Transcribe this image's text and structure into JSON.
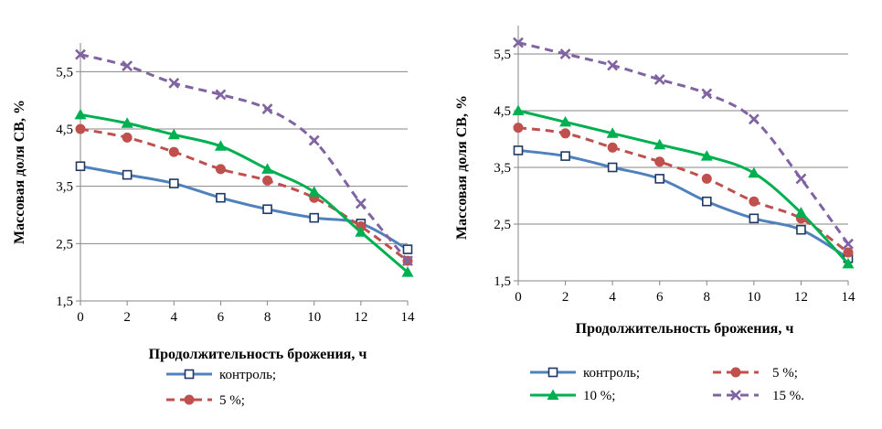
{
  "chart_data": [
    {
      "type": "line",
      "xlabel": "Продолжительность брожения, ч",
      "ylabel": "Массовая доля СВ, %",
      "x": [
        0,
        2,
        4,
        6,
        8,
        10,
        12,
        14
      ],
      "x_tick_labels": [
        "0",
        "2",
        "4",
        "6",
        "8",
        "10",
        "12",
        "14"
      ],
      "ylim": [
        1.5,
        6.0
      ],
      "y_ticks": [
        1.5,
        2.5,
        3.5,
        4.5,
        5.5
      ],
      "y_tick_labels": [
        "1,5",
        "2,5",
        "3,5",
        "4,5",
        "5,5"
      ],
      "grid": true,
      "series": [
        {
          "name": "контроль;",
          "color": "#4f81bd",
          "marker": "square-open",
          "dash": "solid",
          "values": [
            3.85,
            3.7,
            3.55,
            3.3,
            3.1,
            2.95,
            2.85,
            2.4
          ]
        },
        {
          "name": "5 %;",
          "color": "#c0504d",
          "marker": "circle",
          "dash": "dashed",
          "values": [
            4.5,
            4.35,
            4.1,
            3.8,
            3.6,
            3.3,
            2.8,
            2.2
          ]
        },
        {
          "name": "10 %;",
          "color": "#00b050",
          "marker": "triangle",
          "dash": "solid",
          "values": [
            4.75,
            4.6,
            4.4,
            4.2,
            3.8,
            3.4,
            2.7,
            2.0
          ]
        },
        {
          "name": "15 %.",
          "color": "#8064a2",
          "marker": "x",
          "dash": "dashed",
          "values": [
            5.8,
            5.6,
            5.3,
            5.1,
            4.85,
            4.3,
            3.2,
            2.2
          ]
        }
      ],
      "legend_visible": [
        "контроль;",
        "5 %;"
      ]
    },
    {
      "type": "line",
      "xlabel": "Продолжительность брожения, ч",
      "ylabel": "Массовая доля СВ, %",
      "x": [
        0,
        2,
        4,
        6,
        8,
        10,
        12,
        14
      ],
      "x_tick_labels": [
        "0",
        "2",
        "4",
        "6",
        "8",
        "10",
        "12",
        "14"
      ],
      "ylim": [
        1.5,
        6.0
      ],
      "y_ticks": [
        1.5,
        2.5,
        3.5,
        4.5,
        5.5
      ],
      "y_tick_labels": [
        "1,5",
        "2,5",
        "3,5",
        "4,5",
        "5,5"
      ],
      "grid": true,
      "series": [
        {
          "name": "контроль;",
          "color": "#4f81bd",
          "marker": "square-open",
          "dash": "solid",
          "values": [
            3.8,
            3.7,
            3.5,
            3.3,
            2.9,
            2.6,
            2.4,
            1.9
          ]
        },
        {
          "name": "5 %;",
          "color": "#c0504d",
          "marker": "circle",
          "dash": "dashed",
          "values": [
            4.2,
            4.1,
            3.85,
            3.6,
            3.3,
            2.9,
            2.6,
            2.0
          ]
        },
        {
          "name": "10 %;",
          "color": "#00b050",
          "marker": "triangle",
          "dash": "solid",
          "values": [
            4.5,
            4.3,
            4.1,
            3.9,
            3.7,
            3.4,
            2.7,
            1.8
          ]
        },
        {
          "name": "15 %.",
          "color": "#8064a2",
          "marker": "x",
          "dash": "dashed",
          "values": [
            5.7,
            5.5,
            5.3,
            5.05,
            4.8,
            4.35,
            3.3,
            2.15
          ]
        }
      ],
      "legend_visible": [
        "контроль;",
        "5 %;",
        "10 %;",
        "15 %."
      ]
    }
  ]
}
